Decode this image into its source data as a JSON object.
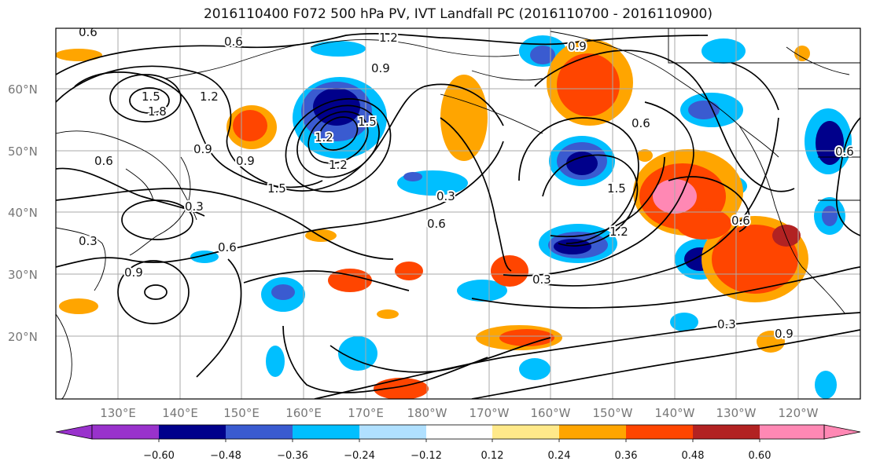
{
  "title": "2016110400 F072 500 hPa PV, IVT Landfall PC (2016110700 - 2016110900)",
  "lat_labels": [
    "60°N",
    "50°N",
    "40°N",
    "30°N",
    "20°N"
  ],
  "lon_labels": [
    "130°E",
    "140°E",
    "150°E",
    "160°E",
    "170°E",
    "180°W",
    "170°W",
    "160°W",
    "150°W",
    "140°W",
    "130°W",
    "120°W"
  ],
  "colorbar": {
    "tick_labels": [
      "−0.60",
      "−0.48",
      "−0.36",
      "−0.24",
      "−0.12",
      "0.12",
      "0.24",
      "0.36",
      "0.48",
      "0.60"
    ],
    "colors": [
      "#9932cc",
      "#00008b",
      "#3a5bd0",
      "#00bfff",
      "#b0e0ff",
      "#ffffff",
      "#ffe98a",
      "#ffa500",
      "#ff4500",
      "#b22222",
      "#ff88b4"
    ]
  },
  "contour_labels": [
    "0.6",
    "0.6",
    "1.2",
    "0.9",
    "0.9",
    "1.5",
    "1.8",
    "1.2",
    "0.9",
    "0.6",
    "0.9",
    "1.2",
    "1.5",
    "1.2",
    "1.5",
    "0.3",
    "0.6",
    "0.3",
    "0.9",
    "0.6",
    "0.3",
    "0.6",
    "1.5",
    "1.2",
    "0.6",
    "0.3",
    "0.3",
    "0.9",
    "0.6"
  ]
}
